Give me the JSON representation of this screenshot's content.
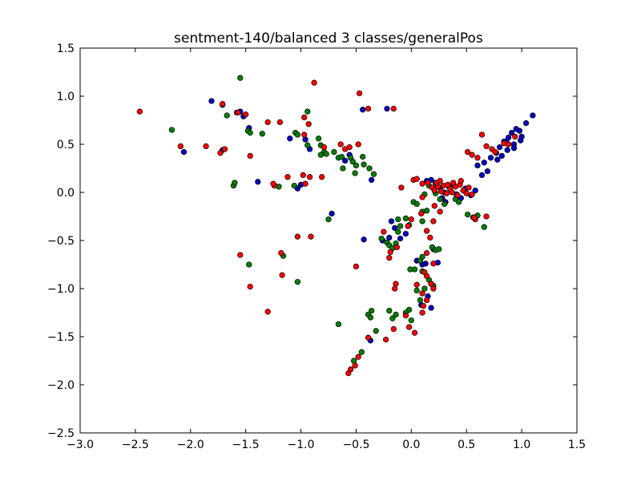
{
  "chart_data": {
    "type": "scatter",
    "title": "sentment-140/balanced 3 classes/generalPos",
    "xlabel": "",
    "ylabel": "",
    "xlim": [
      -3.0,
      1.5
    ],
    "ylim": [
      -2.5,
      1.5
    ],
    "xticks": [
      "−3.0",
      "−2.5",
      "−2.0",
      "−1.5",
      "−1.0",
      "−0.5",
      "0.0",
      "0.5",
      "1.0",
      "1.5"
    ],
    "yticks": [
      "−2.5",
      "−2.0",
      "−1.5",
      "−1.0",
      "−0.5",
      "0.0",
      "0.5",
      "1.0",
      "1.5"
    ],
    "xtick_values": [
      -3.0,
      -2.5,
      -2.0,
      -1.5,
      -1.0,
      -0.5,
      0.0,
      0.5,
      1.0,
      1.5
    ],
    "ytick_values": [
      -2.5,
      -2.0,
      -1.5,
      -1.0,
      -0.5,
      0.0,
      0.5,
      1.0,
      1.5
    ],
    "grid": false,
    "legend": "none",
    "series": [
      {
        "color": "#0000bf",
        "points": [
          [
            -1.81,
            0.95
          ],
          [
            -1.71,
            0.91
          ],
          [
            -1.58,
            0.83
          ],
          [
            -1.55,
            0.84
          ],
          [
            -1.52,
            0.79
          ],
          [
            -1.47,
            0.67
          ],
          [
            -1.71,
            0.44
          ],
          [
            -2.06,
            0.42
          ],
          [
            -1.39,
            0.11
          ],
          [
            -1.1,
            0.56
          ],
          [
            -0.96,
            0.55
          ],
          [
            -0.92,
            0.45
          ],
          [
            -1.0,
            0.08
          ],
          [
            -1.03,
            0.04
          ],
          [
            -0.72,
            -0.22
          ],
          [
            -0.6,
            0.33
          ],
          [
            -0.56,
            0.39
          ],
          [
            -0.36,
            0.13
          ],
          [
            -0.44,
            0.86
          ],
          [
            -0.22,
            0.87
          ],
          [
            -0.43,
            -0.49
          ],
          [
            -0.18,
            -0.3
          ],
          [
            -0.15,
            -0.37
          ],
          [
            -0.2,
            -0.47
          ],
          [
            -0.26,
            -0.5
          ],
          [
            -0.1,
            -0.48
          ],
          [
            -0.05,
            -0.43
          ],
          [
            0.05,
            -0.71
          ],
          [
            0.13,
            -0.74
          ],
          [
            0.2,
            -0.59
          ],
          [
            0.24,
            -0.73
          ],
          [
            0.1,
            -0.75
          ],
          [
            0.15,
            -1.08
          ],
          [
            0.18,
            -1.2
          ],
          [
            0.09,
            -1.17
          ],
          [
            -0.37,
            -1.54
          ],
          [
            0.14,
            0.12
          ],
          [
            0.18,
            0.13
          ],
          [
            0.22,
            0.1
          ],
          [
            0.26,
            0.05
          ],
          [
            0.3,
            0.0
          ],
          [
            0.31,
            -0.1
          ],
          [
            0.28,
            -0.06
          ],
          [
            0.34,
            0.06
          ],
          [
            0.38,
            0.08
          ],
          [
            0.41,
            -0.02
          ],
          [
            0.45,
            -0.06
          ],
          [
            0.49,
            0.04
          ],
          [
            0.54,
            -0.03
          ],
          [
            0.58,
            0.02
          ],
          [
            0.6,
            0.28
          ],
          [
            0.66,
            0.31
          ],
          [
            0.69,
            0.22
          ],
          [
            0.64,
            0.18
          ],
          [
            0.72,
            0.36
          ],
          [
            0.77,
            0.41
          ],
          [
            0.8,
            0.47
          ],
          [
            0.84,
            0.53
          ],
          [
            0.88,
            0.57
          ],
          [
            0.91,
            0.62
          ],
          [
            0.95,
            0.66
          ],
          [
            0.98,
            0.64
          ],
          [
            1.0,
            0.58
          ],
          [
            0.99,
            0.54
          ],
          [
            0.93,
            0.5
          ],
          [
            0.87,
            0.44
          ],
          [
            0.82,
            0.38
          ],
          [
            0.78,
            0.34
          ],
          [
            1.04,
            0.72
          ],
          [
            1.1,
            0.8
          ],
          [
            0.86,
            0.53
          ],
          [
            0.93,
            0.46
          ]
        ]
      },
      {
        "color": "#007f00",
        "points": [
          [
            -2.17,
            0.65
          ],
          [
            -1.67,
            0.8
          ],
          [
            -1.55,
            1.19
          ],
          [
            -1.48,
            0.64
          ],
          [
            -1.46,
            0.62
          ],
          [
            -1.61,
            0.07
          ],
          [
            -1.6,
            0.1
          ],
          [
            -1.47,
            -0.75
          ],
          [
            -1.16,
            -0.66
          ],
          [
            -1.35,
            0.61
          ],
          [
            -1.05,
            0.62
          ],
          [
            -1.03,
            0.6
          ],
          [
            -0.94,
            0.49
          ],
          [
            -0.84,
            0.56
          ],
          [
            -0.82,
            0.49
          ],
          [
            -0.79,
            0.42
          ],
          [
            -0.82,
            0.39
          ],
          [
            -0.77,
            0.4
          ],
          [
            -0.7,
            0.42
          ],
          [
            -0.66,
            0.36
          ],
          [
            -0.63,
            0.37
          ],
          [
            -0.55,
            0.36
          ],
          [
            -0.53,
            0.32
          ],
          [
            -0.5,
            0.28
          ],
          [
            -0.44,
            0.37
          ],
          [
            -0.43,
            0.29
          ],
          [
            -0.38,
            0.25
          ],
          [
            -0.34,
            0.19
          ],
          [
            -0.51,
            0.2
          ],
          [
            -0.62,
            0.25
          ],
          [
            -1.06,
            0.07
          ],
          [
            -1.2,
            0.06
          ],
          [
            -0.94,
            0.84
          ],
          [
            -0.75,
            -0.28
          ],
          [
            -1.03,
            -0.93
          ],
          [
            -0.66,
            -1.37
          ],
          [
            -0.39,
            -1.27
          ],
          [
            -0.37,
            -1.3
          ],
          [
            -0.36,
            -1.23
          ],
          [
            -0.32,
            -1.44
          ],
          [
            -0.2,
            -1.23
          ],
          [
            -0.17,
            -1.31
          ],
          [
            -0.27,
            -0.48
          ],
          [
            -0.22,
            -0.52
          ],
          [
            -0.2,
            -0.55
          ],
          [
            -0.17,
            -0.58
          ],
          [
            -0.14,
            -0.53
          ],
          [
            -0.12,
            -0.41
          ],
          [
            -0.1,
            -0.35
          ],
          [
            -0.12,
            -0.28
          ],
          [
            -0.05,
            -0.27
          ],
          [
            -0.02,
            -0.34
          ],
          [
            0.02,
            -0.1
          ],
          [
            0.05,
            -0.12
          ],
          [
            0.1,
            -0.2
          ],
          [
            0.1,
            -0.3
          ],
          [
            0.14,
            -0.19
          ],
          [
            0.12,
            -0.02
          ],
          [
            0.16,
            0.07
          ],
          [
            0.22,
            -0.01
          ],
          [
            0.26,
            -0.07
          ],
          [
            0.3,
            -0.12
          ],
          [
            0.4,
            -0.07
          ],
          [
            0.43,
            -0.1
          ],
          [
            0.19,
            -0.57
          ],
          [
            0.22,
            -0.6
          ],
          [
            0.25,
            -0.59
          ],
          [
            0.1,
            -0.67
          ],
          [
            0.08,
            -0.71
          ],
          [
            -0.01,
            -0.8
          ],
          [
            0.03,
            -0.8
          ],
          [
            0.1,
            -0.82
          ],
          [
            0.16,
            -0.91
          ],
          [
            0.18,
            -0.95
          ],
          [
            0.2,
            -0.97
          ],
          [
            0.12,
            -1.0
          ],
          [
            0.05,
            -1.02
          ],
          [
            0.08,
            -1.12
          ],
          [
            -0.02,
            -1.22
          ],
          [
            0.0,
            -1.33
          ],
          [
            -0.05,
            -1.25
          ],
          [
            -0.14,
            -1.27
          ],
          [
            -0.45,
            -1.66
          ],
          [
            -0.52,
            -1.75
          ],
          [
            0.51,
            -0.23
          ],
          [
            0.56,
            -0.26
          ],
          [
            0.6,
            -0.24
          ],
          [
            0.66,
            -0.36
          ]
        ]
      },
      {
        "color": "#ff0000",
        "points": [
          [
            -2.46,
            0.84
          ],
          [
            -2.09,
            0.48
          ],
          [
            -1.86,
            0.48
          ],
          [
            -1.71,
            0.92
          ],
          [
            -1.69,
            0.45
          ],
          [
            -1.73,
            0.41
          ],
          [
            -1.57,
            0.83
          ],
          [
            -1.5,
            0.81
          ],
          [
            -1.46,
            0.38
          ],
          [
            -1.3,
            0.73
          ],
          [
            -1.19,
            0.73
          ],
          [
            -1.24,
            0.07
          ],
          [
            -1.25,
            0.09
          ],
          [
            -1.12,
            0.16
          ],
          [
            -0.88,
            1.14
          ],
          [
            -0.97,
            0.78
          ],
          [
            -0.93,
            0.71
          ],
          [
            -0.97,
            0.6
          ],
          [
            -0.98,
            0.18
          ],
          [
            -0.96,
            0.09
          ],
          [
            -0.92,
            0.16
          ],
          [
            -0.81,
            0.16
          ],
          [
            -0.79,
            0.47
          ],
          [
            -0.64,
            0.5
          ],
          [
            -0.6,
            0.45
          ],
          [
            -0.56,
            0.47
          ],
          [
            -0.48,
            0.5
          ],
          [
            -0.47,
            1.03
          ],
          [
            -0.39,
            0.87
          ],
          [
            -0.16,
            0.87
          ],
          [
            -1.55,
            -0.65
          ],
          [
            -1.46,
            -0.98
          ],
          [
            -1.18,
            -0.63
          ],
          [
            -1.17,
            -0.86
          ],
          [
            -1.03,
            -0.46
          ],
          [
            -0.91,
            -0.46
          ],
          [
            -0.5,
            -0.77
          ],
          [
            -1.3,
            -1.24
          ],
          [
            -0.39,
            -1.51
          ],
          [
            -0.48,
            -1.71
          ],
          [
            -0.51,
            -1.8
          ],
          [
            -0.55,
            -1.84
          ],
          [
            -0.57,
            -1.88
          ],
          [
            -0.23,
            -1.53
          ],
          [
            -0.16,
            -1.42
          ],
          [
            -0.25,
            -0.41
          ],
          [
            -0.19,
            -0.62
          ],
          [
            -0.2,
            -0.68
          ],
          [
            -0.13,
            -0.57
          ],
          [
            -0.09,
            0.05
          ],
          [
            0.02,
            0.13
          ],
          [
            0.05,
            0.14
          ],
          [
            0.1,
            0.09
          ],
          [
            0.15,
            0.1
          ],
          [
            0.19,
            0.05
          ],
          [
            0.21,
            0.02
          ],
          [
            0.24,
            0.06
          ],
          [
            0.27,
            0.01
          ],
          [
            0.29,
            0.07
          ],
          [
            0.32,
            -0.01
          ],
          [
            0.35,
            0.04
          ],
          [
            0.37,
            0.0
          ],
          [
            0.4,
            0.06
          ],
          [
            0.42,
            -0.03
          ],
          [
            0.44,
            0.08
          ],
          [
            0.47,
            0.02
          ],
          [
            0.5,
            -0.01
          ],
          [
            0.52,
            0.05
          ],
          [
            0.55,
            -0.02
          ],
          [
            0.23,
            0.1
          ],
          [
            0.26,
            0.12
          ],
          [
            0.33,
            0.08
          ],
          [
            0.38,
            0.1
          ],
          [
            0.45,
            0.12
          ],
          [
            0.1,
            -0.05
          ],
          [
            0.21,
            -0.14
          ],
          [
            0.26,
            -0.2
          ],
          [
            0.2,
            -0.3
          ],
          [
            0.09,
            -0.22
          ],
          [
            0.0,
            -0.28
          ],
          [
            -0.03,
            -0.35
          ],
          [
            0.14,
            -0.4
          ],
          [
            0.17,
            -0.47
          ],
          [
            0.14,
            -0.63
          ],
          [
            0.2,
            -0.74
          ],
          [
            0.12,
            -0.83
          ],
          [
            0.14,
            -0.87
          ],
          [
            0.18,
            -0.95
          ],
          [
            0.2,
            -1.0
          ],
          [
            0.1,
            -1.05
          ],
          [
            0.05,
            -0.96
          ],
          [
            0.14,
            -1.12
          ],
          [
            0.11,
            -1.18
          ],
          [
            0.1,
            -1.25
          ],
          [
            -0.02,
            -1.4
          ],
          [
            -0.05,
            -1.28
          ],
          [
            -0.14,
            -0.95
          ],
          [
            -0.15,
            -1.0
          ],
          [
            0.03,
            -1.46
          ],
          [
            0.51,
            0.42
          ],
          [
            0.55,
            0.39
          ],
          [
            0.64,
            0.6
          ],
          [
            0.68,
            0.48
          ],
          [
            0.73,
            0.45
          ],
          [
            0.6,
            0.36
          ],
          [
            0.76,
            0.42
          ],
          [
            0.88,
            0.5
          ],
          [
            0.94,
            0.58
          ],
          [
            0.84,
            0.51
          ],
          [
            0.58,
            -0.28
          ],
          [
            0.68,
            -0.25
          ],
          [
            0.57,
            -0.26
          ]
        ]
      }
    ]
  }
}
